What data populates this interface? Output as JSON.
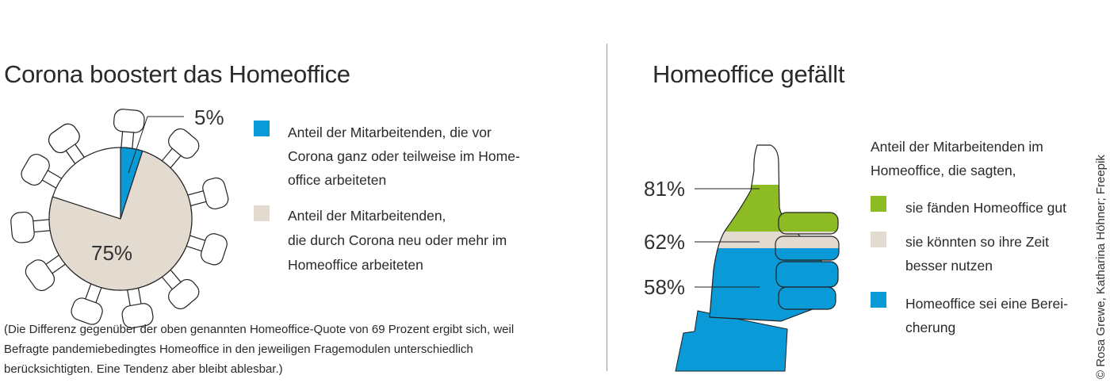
{
  "chart_data": [
    {
      "type": "pie",
      "title": "Corona boostert das Homeoffice",
      "slices": [
        {
          "label": "Anteil der Mitarbeitenden, die vor Corona ganz oder teilweise im Homeoffice arbeiteten",
          "value": 5,
          "display": "5%",
          "color": "#0a9ad8"
        },
        {
          "label": "Anteil der Mitarbeitenden, die durch Corona neu oder mehr im Homeoffice arbeiteten",
          "value": 75,
          "display": "75%",
          "color": "#e3dbd0"
        }
      ],
      "legend_lines": [
        [
          "Anteil der Mitarbeitenden, die vor",
          "Corona ganz oder teilweise im Home-",
          "office arbeiteten"
        ],
        [
          "Anteil der Mitarbeitenden,",
          "die durch Corona neu oder mehr im",
          "Homeoffice arbeiteten"
        ]
      ],
      "footnote": [
        "(Die Differenz gegenüber der oben genannten Homeoffice-Quote von 69 Prozent ergibt sich, weil",
        "Befragte pandemiebedingtes Homeoffice in den jeweiligen Fragemodulen unterschiedlich",
        "berücksichtigten. Eine Tendenz aber bleibt ablesbar.)"
      ]
    },
    {
      "type": "bar",
      "title": "Homeoffice gefällt",
      "intro": [
        "Anteil der Mitarbeitenden im",
        "Homeoffice, die sagten,"
      ],
      "series": [
        {
          "name": "sie fänden Homeoffice gut",
          "value": 81,
          "display": "81%",
          "color": "#8cbb24",
          "lines": [
            "sie fänden Homeoffice gut"
          ]
        },
        {
          "name": "sie könnten so ihre Zeit besser nutzen",
          "value": 62,
          "display": "62%",
          "color": "#e3dbd0",
          "lines": [
            "sie könnten so ihre Zeit",
            "besser nutzen"
          ]
        },
        {
          "name": "Homeoffice sei eine Bereicherung",
          "value": 58,
          "display": "58%",
          "color": "#0a9ad8",
          "lines": [
            "Homeoffice sei eine Berei-",
            "cherung"
          ]
        }
      ]
    }
  ],
  "credit": "© Rosa Grewe, Katharina Höhner; Freepik"
}
